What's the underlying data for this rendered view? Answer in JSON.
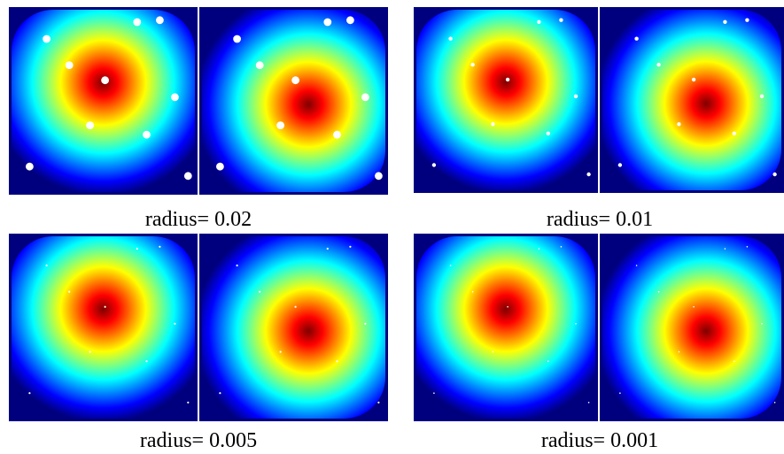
{
  "panels": [
    {
      "caption": "radius= 0.02",
      "radius": 0.02
    },
    {
      "caption": "radius= 0.01",
      "radius": 0.01
    },
    {
      "caption": "radius= 0.005",
      "radius": 0.005
    },
    {
      "caption": "radius= 0.001",
      "radius": 0.001
    }
  ],
  "colormap": [
    "#00007f",
    "#0000ff",
    "#007fff",
    "#00ffff",
    "#7fff7f",
    "#ffff00",
    "#ff7f00",
    "#ff0000",
    "#7f0000"
  ],
  "marker_color": "#ffffff",
  "divider_color": "#ffffff"
}
